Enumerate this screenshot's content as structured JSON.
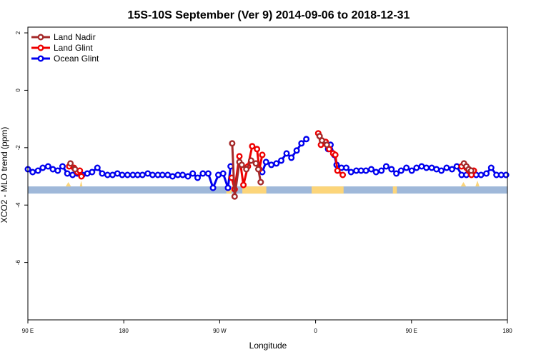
{
  "chart_data": {
    "type": "line",
    "title": "15S-10S September (Ver 9)   2014-09-06 to 2018-12-31",
    "xlabel": "Longitude",
    "ylabel": "XCO2 - MLO trend (ppm)",
    "xlim": [
      -270,
      -90
    ],
    "ylim": [
      -8,
      2.2
    ],
    "x_ticks": [
      {
        "value": -270,
        "label": "90 E"
      },
      {
        "value": -234,
        "label": "180"
      },
      {
        "value": -198,
        "label": "90 W"
      },
      {
        "value": -162,
        "label": "0"
      },
      {
        "value": -126,
        "label": "90 E"
      },
      {
        "value": -90,
        "label": "180"
      }
    ],
    "y_ticks": [
      {
        "value": 2,
        "label": "2"
      },
      {
        "value": 0,
        "label": "0"
      },
      {
        "value": -2,
        "label": "-2"
      },
      {
        "value": -4,
        "label": "-4"
      },
      {
        "value": -6,
        "label": "-6"
      }
    ],
    "grid": false,
    "legend_position": "top-left",
    "colors": {
      "land_nadir": "#a52a2a",
      "land_glint": "#ee0000",
      "ocean_glint": "#0000ee",
      "ocean_band": "#9fb8d9",
      "land_band": "#fcd57a"
    },
    "surface_band": {
      "y_top": -3.35,
      "y_bottom": -3.6,
      "land_segments": [
        [
          -195.5,
          -193.5
        ],
        [
          -189.5,
          -180.5
        ],
        [
          -163.5,
          -151.5
        ],
        [
          -133,
          -131.5
        ]
      ],
      "land_bumps": [
        {
          "x0": -255.8,
          "x1": -253.8,
          "peak": -3.2
        },
        {
          "x0": -250.5,
          "x1": -249.5,
          "peak": -3.15
        },
        {
          "x0": -107.5,
          "x1": -105.5,
          "peak": -3.2
        },
        {
          "x0": -102,
          "x1": -100.5,
          "peak": -3.15
        }
      ]
    },
    "series": [
      {
        "name": "Land Nadir",
        "key": "land_nadir",
        "segments": [
          [
            [
              -254,
              -2.55
            ],
            [
              -252.3,
              -2.75
            ]
          ],
          [
            [
              -193.3,
              -1.85
            ],
            [
              -192.4,
              -3.7
            ],
            [
              -190.6,
              -2.5
            ],
            [
              -189.7,
              -2.6
            ],
            [
              -188,
              -2.75
            ],
            [
              -186.2,
              -2.45
            ],
            [
              -184.4,
              -2.55
            ],
            [
              -183.5,
              -2.75
            ],
            [
              -182.6,
              -3.2
            ]
          ],
          [
            [
              -160.5,
              -1.6
            ],
            [
              -159.6,
              -1.75
            ],
            [
              -157.8,
              -1.9
            ]
          ],
          [
            [
              -106.3,
              -2.55
            ],
            [
              -105.4,
              -2.65
            ],
            [
              -104.5,
              -2.75
            ],
            [
              -103.6,
              -2.8
            ]
          ]
        ]
      },
      {
        "name": "Land Glint",
        "key": "land_glint",
        "segments": [
          [
            [
              -254.5,
              -2.65
            ],
            [
              -252.7,
              -2.7
            ],
            [
              -251.4,
              -2.85
            ],
            [
              -250.5,
              -2.8
            ],
            [
              -249.9,
              -3.0
            ]
          ],
          [
            [
              -193.5,
              -3.05
            ],
            [
              -192.4,
              -3.45
            ],
            [
              -190.6,
              -2.3
            ],
            [
              -189.1,
              -3.3
            ],
            [
              -187.4,
              -2.65
            ],
            [
              -185.8,
              -1.95
            ],
            [
              -184,
              -2.05
            ],
            [
              -183.1,
              -2.75
            ],
            [
              -182,
              -2.25
            ]
          ],
          [
            [
              -161,
              -1.5
            ],
            [
              -160,
              -1.9
            ],
            [
              -158.2,
              -1.8
            ],
            [
              -156.9,
              -2.05
            ],
            [
              -155.4,
              -2.2
            ],
            [
              -154.6,
              -2.25
            ],
            [
              -153.8,
              -2.8
            ],
            [
              -151.8,
              -2.95
            ]
          ],
          [
            [
              -107.2,
              -2.65
            ],
            [
              -105.4,
              -2.7
            ],
            [
              -104.5,
              -2.8
            ],
            [
              -103.5,
              -2.95
            ],
            [
              -102.6,
              -2.8
            ]
          ]
        ]
      },
      {
        "name": "Ocean Glint",
        "key": "ocean_glint",
        "segments": [
          [
            [
              -270,
              -2.75
            ],
            [
              -268.2,
              -2.85
            ],
            [
              -266.2,
              -2.8
            ],
            [
              -264.4,
              -2.7
            ],
            [
              -262.4,
              -2.65
            ],
            [
              -260.6,
              -2.75
            ],
            [
              -258.8,
              -2.8
            ],
            [
              -257,
              -2.65
            ],
            [
              -255.2,
              -2.9
            ],
            [
              -253.2,
              -2.95
            ],
            [
              -251.4,
              -2.9
            ],
            [
              -249.5,
              -2.95
            ],
            [
              -247.7,
              -2.9
            ],
            [
              -245.9,
              -2.85
            ],
            [
              -243.9,
              -2.7
            ],
            [
              -242.1,
              -2.9
            ],
            [
              -240.1,
              -2.95
            ],
            [
              -238.2,
              -2.95
            ],
            [
              -236.4,
              -2.9
            ],
            [
              -234.6,
              -2.95
            ],
            [
              -232.6,
              -2.95
            ],
            [
              -230.6,
              -2.95
            ],
            [
              -228.8,
              -2.95
            ],
            [
              -227,
              -2.95
            ],
            [
              -225,
              -2.9
            ],
            [
              -223.2,
              -2.95
            ],
            [
              -221.2,
              -2.95
            ],
            [
              -219.5,
              -2.95
            ],
            [
              -217.5,
              -2.95
            ],
            [
              -215.7,
              -3.0
            ],
            [
              -213.7,
              -2.95
            ],
            [
              -211.9,
              -2.95
            ],
            [
              -209.9,
              -3.0
            ],
            [
              -208.1,
              -2.9
            ],
            [
              -206.3,
              -3.05
            ],
            [
              -204.3,
              -2.9
            ],
            [
              -202.3,
              -2.9
            ],
            [
              -200.5,
              -3.4
            ],
            [
              -198.5,
              -2.95
            ],
            [
              -196.7,
              -2.9
            ],
            [
              -194.9,
              -3.4
            ],
            [
              -193.9,
              -2.65
            ]
          ],
          [
            [
              -182,
              -2.85
            ],
            [
              -180.6,
              -2.5
            ],
            [
              -178.6,
              -2.6
            ],
            [
              -176.7,
              -2.55
            ],
            [
              -174.9,
              -2.45
            ],
            [
              -172.9,
              -2.2
            ],
            [
              -171.1,
              -2.35
            ],
            [
              -169.1,
              -2.1
            ],
            [
              -167.3,
              -1.85
            ],
            [
              -165.5,
              -1.7
            ]
          ],
          [
            [
              -157.3,
              -2.05
            ],
            [
              -156.4,
              -1.9
            ],
            [
              -155,
              -2.25
            ],
            [
              -154.1,
              -2.6
            ]
          ],
          [
            [
              -152.3,
              -2.7
            ],
            [
              -150.5,
              -2.7
            ],
            [
              -148.7,
              -2.85
            ],
            [
              -146.7,
              -2.8
            ],
            [
              -144.9,
              -2.8
            ],
            [
              -143.1,
              -2.8
            ],
            [
              -141.1,
              -2.75
            ],
            [
              -139.3,
              -2.85
            ],
            [
              -137.3,
              -2.8
            ],
            [
              -135.5,
              -2.65
            ],
            [
              -133.5,
              -2.75
            ],
            [
              -131.7,
              -2.9
            ],
            [
              -129.9,
              -2.8
            ],
            [
              -127.9,
              -2.7
            ],
            [
              -125.9,
              -2.8
            ],
            [
              -124.1,
              -2.7
            ],
            [
              -122.2,
              -2.65
            ],
            [
              -120.4,
              -2.7
            ],
            [
              -118.4,
              -2.7
            ],
            [
              -116.6,
              -2.75
            ],
            [
              -114.8,
              -2.8
            ],
            [
              -112.8,
              -2.7
            ],
            [
              -110.8,
              -2.75
            ],
            [
              -109,
              -2.65
            ],
            [
              -107.2,
              -2.95
            ],
            [
              -105.4,
              -2.95
            ],
            [
              -103.5,
              -2.9
            ],
            [
              -101.7,
              -2.95
            ],
            [
              -99.9,
              -2.95
            ],
            [
              -97.9,
              -2.9
            ],
            [
              -96.1,
              -2.7
            ],
            [
              -94.1,
              -2.95
            ],
            [
              -92.3,
              -2.95
            ],
            [
              -90.5,
              -2.95
            ]
          ]
        ]
      }
    ]
  }
}
